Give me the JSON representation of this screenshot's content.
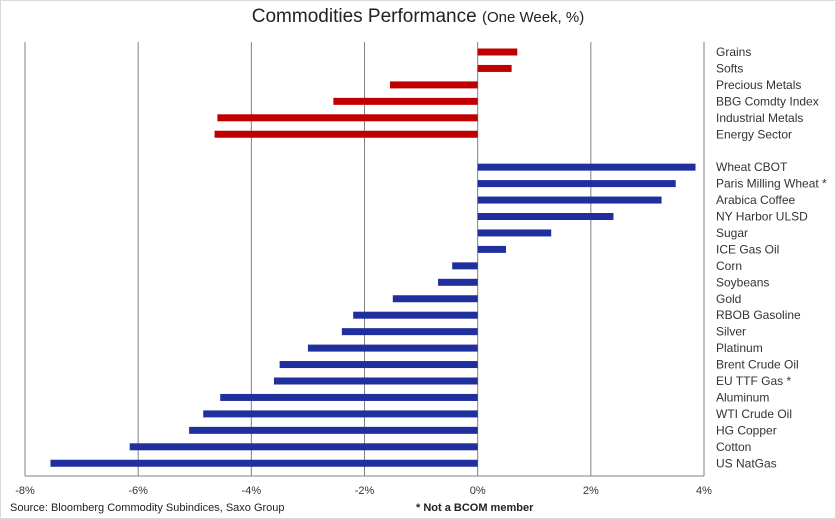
{
  "title": {
    "main": "Commodities Performance",
    "sub": "(One Week, %)"
  },
  "footer": {
    "source": "Source: Bloomberg Commodity Subindices, Saxo Group",
    "note": "* Not a BCOM member"
  },
  "colors": {
    "sector": "#c00000",
    "commodity": "#1f2f9e",
    "grid": "#808080",
    "axis": "#808080"
  },
  "chart_data": {
    "type": "bar",
    "orientation": "horizontal",
    "xlim": [
      -8,
      4
    ],
    "xticks": [
      -8,
      -6,
      -4,
      -2,
      0,
      2,
      4
    ],
    "xtick_labels": [
      "-8%",
      "-6%",
      "-4%",
      "-2%",
      "0%",
      "2%",
      "4%"
    ],
    "grid": "vertical",
    "series": [
      {
        "color_key": "sector",
        "categories": [
          "Grains",
          "Softs",
          "Precious Metals",
          "BBG Comdty Index",
          "Industrial Metals",
          "Energy Sector"
        ],
        "values": [
          0.7,
          0.6,
          -1.55,
          -2.55,
          -4.6,
          -4.65
        ]
      },
      {
        "color_key": "commodity",
        "categories": [
          "Wheat CBOT",
          "Paris Milling Wheat *",
          "Arabica Coffee",
          "NY Harbor ULSD",
          "Sugar",
          "ICE Gas Oil",
          "Corn",
          "Soybeans",
          "Gold",
          "RBOB Gasoline",
          "Silver",
          "Platinum",
          "Brent Crude Oil",
          "EU TTF Gas *",
          "Aluminum",
          "WTI Crude Oil",
          "HG Copper",
          "Cotton",
          "US NatGas"
        ],
        "values": [
          3.85,
          3.5,
          3.25,
          2.4,
          1.3,
          0.5,
          -0.45,
          -0.7,
          -1.5,
          -2.2,
          -2.4,
          -3.0,
          -3.5,
          -3.6,
          -4.55,
          -4.85,
          -5.1,
          -6.15,
          -7.55
        ]
      }
    ]
  }
}
